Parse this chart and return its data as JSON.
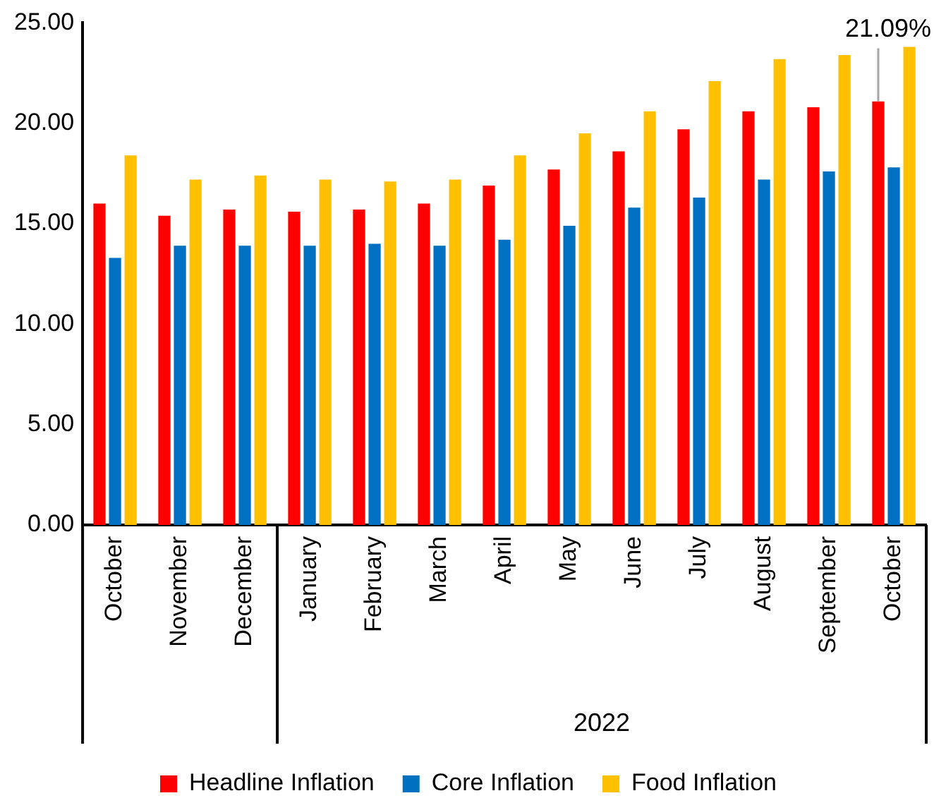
{
  "chart_data": {
    "type": "bar",
    "categories": [
      "October",
      "November",
      "December",
      "January",
      "February",
      "March",
      "April",
      "May",
      "June",
      "July",
      "August",
      "September",
      "October"
    ],
    "series": [
      {
        "name": "Headline Inflation",
        "color": "#ff0000",
        "values": [
          16.0,
          15.4,
          15.7,
          15.6,
          15.7,
          16.0,
          16.9,
          17.7,
          18.6,
          19.7,
          20.6,
          20.8,
          21.09
        ]
      },
      {
        "name": "Core Inflation",
        "color": "#0070c0",
        "values": [
          13.3,
          13.9,
          13.9,
          13.9,
          14.0,
          13.9,
          14.2,
          14.9,
          15.8,
          16.3,
          17.2,
          17.6,
          17.8
        ]
      },
      {
        "name": "Food Inflation",
        "color": "#ffc000",
        "values": [
          18.4,
          17.2,
          17.4,
          17.2,
          17.1,
          17.2,
          18.4,
          19.5,
          20.6,
          22.1,
          23.2,
          23.4,
          23.8
        ]
      }
    ],
    "ylim": [
      0,
      25
    ],
    "yticks": [
      {
        "value": 0,
        "label": "0.00"
      },
      {
        "value": 5,
        "label": "5.00"
      },
      {
        "value": 10,
        "label": "10.00"
      },
      {
        "value": 15,
        "label": "15.00"
      },
      {
        "value": 20,
        "label": "20.00"
      },
      {
        "value": 25,
        "label": "25.00"
      }
    ],
    "annotations": [
      {
        "text": "21.09%",
        "y": 21.09
      },
      "2022"
    ],
    "grid": false,
    "legend": "bottom"
  }
}
